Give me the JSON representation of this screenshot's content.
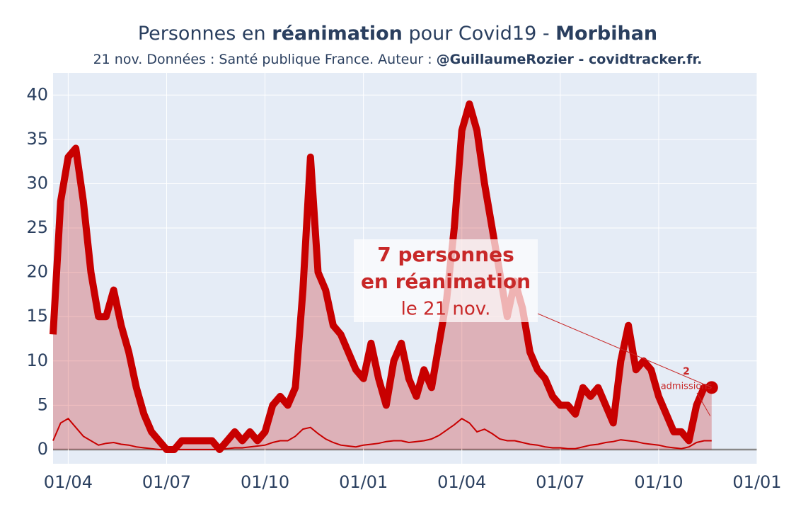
{
  "chart_data": {
    "type": "line",
    "title": [
      "Personnes en ",
      "réanimation",
      " pour Covid19 - ",
      "Morbihan"
    ],
    "subtitle": [
      "21 nov. Données : Santé publique France. Auteur : ",
      "@GuillaumeRozier - covidtracker.fr."
    ],
    "categories": [
      null,
      null,
      "01/04",
      null,
      null,
      null,
      null,
      null,
      null,
      null,
      null,
      null,
      null,
      null,
      null,
      "01/07",
      null,
      null,
      null,
      null,
      null,
      null,
      null,
      null,
      null,
      null,
      null,
      null,
      "01/10",
      null,
      null,
      null,
      null,
      null,
      null,
      null,
      null,
      null,
      null,
      null,
      null,
      "01/01",
      null,
      null,
      null,
      null,
      null,
      null,
      null,
      null,
      null,
      null,
      null,
      null,
      "01/04",
      null,
      null,
      null,
      null,
      null,
      null,
      null,
      null,
      null,
      null,
      null,
      null,
      "01/07",
      null,
      null,
      null,
      null,
      null,
      null,
      null,
      null,
      null,
      null,
      null,
      null,
      "01/10",
      null,
      null,
      null,
      null,
      null,
      null,
      null,
      null,
      null,
      null,
      null,
      null,
      "01/01"
    ],
    "series": [
      {
        "color": "#c80000",
        "values": [
          13,
          28,
          33,
          34,
          28,
          20,
          15,
          15,
          18,
          14,
          11,
          7,
          4,
          2,
          1,
          0,
          0,
          1,
          1,
          1,
          1,
          1,
          0,
          1,
          2,
          1,
          2,
          1,
          2,
          5,
          6,
          5,
          7,
          18,
          33,
          20,
          18,
          14,
          13,
          11,
          9,
          8,
          12,
          8,
          5,
          10,
          12,
          8,
          6,
          9,
          7,
          12,
          17,
          25,
          36,
          39,
          36,
          30,
          25,
          20,
          15,
          19,
          16,
          11,
          9,
          8,
          6,
          5,
          5,
          4,
          7,
          6,
          7,
          5,
          3,
          10,
          14,
          9,
          10,
          9,
          6,
          4,
          2,
          2,
          1,
          5,
          7,
          7,
          null,
          null,
          null,
          null,
          null,
          null
        ]
      },
      {
        "color": "#c80000",
        "values": [
          1,
          3,
          3.5,
          2.5,
          1.5,
          1,
          0.5,
          0.7,
          0.8,
          0.6,
          0.5,
          0.3,
          0.2,
          0.1,
          0,
          0,
          0,
          0,
          0,
          0,
          0,
          0,
          0,
          0.1,
          0.2,
          0.2,
          0.3,
          0.4,
          0.5,
          0.8,
          1,
          1,
          1.5,
          2.3,
          2.5,
          1.8,
          1.2,
          0.8,
          0.5,
          0.4,
          0.3,
          0.5,
          0.6,
          0.7,
          0.9,
          1,
          1,
          0.8,
          0.9,
          1,
          1.2,
          1.6,
          2.2,
          2.8,
          3.5,
          3,
          2,
          2.3,
          1.8,
          1.2,
          1,
          1,
          0.8,
          0.6,
          0.5,
          0.3,
          0.2,
          0.2,
          0.1,
          0.1,
          0.3,
          0.5,
          0.6,
          0.8,
          0.9,
          1.1,
          1,
          0.9,
          0.7,
          0.6,
          0.5,
          0.3,
          0.2,
          0.1,
          0.3,
          0.8,
          1,
          1,
          null,
          null,
          null,
          null,
          null,
          null
        ]
      }
    ],
    "ylim": [
      -1.6,
      42.5
    ],
    "yticks": [
      0,
      5,
      10,
      15,
      20,
      25,
      30,
      35,
      40
    ],
    "grid": true,
    "annotation": [
      "7 personnes",
      "en réanimation",
      "le 21 nov."
    ],
    "annotation2": [
      "2",
      "admissions"
    ]
  }
}
